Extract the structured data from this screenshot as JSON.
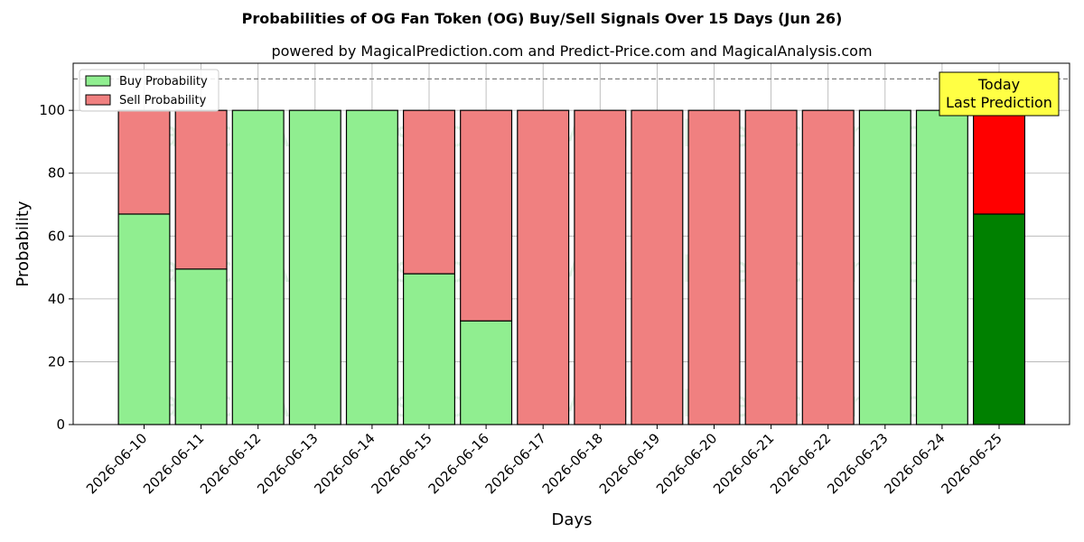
{
  "chart_data": {
    "type": "bar",
    "stacked": true,
    "title": "Probabilities of OG Fan Token (OG) Buy/Sell Signals Over 15 Days (Jun 26)",
    "subtitle": "powered by MagicalPrediction.com and Predict-Price.com and MagicalAnalysis.com",
    "xlabel": "Days",
    "ylabel": "Probability",
    "ylim": [
      0,
      115
    ],
    "yticks": [
      0,
      20,
      40,
      60,
      80,
      100
    ],
    "reference_line": 110,
    "grid": true,
    "legend_position": "top-left",
    "categories": [
      "2026-06-10",
      "2026-06-11",
      "2026-06-12",
      "2026-06-13",
      "2026-06-14",
      "2026-06-15",
      "2026-06-16",
      "2026-06-17",
      "2026-06-18",
      "2026-06-19",
      "2026-06-20",
      "2026-06-21",
      "2026-06-22",
      "2026-06-23",
      "2026-06-24",
      "2026-06-25"
    ],
    "series": [
      {
        "name": "Buy Probability",
        "color": "#90ee90",
        "highlight_color": "#008000",
        "values": [
          67,
          49.5,
          100,
          100,
          100,
          48,
          33,
          0,
          0,
          0,
          0,
          0,
          0,
          100,
          100,
          67
        ]
      },
      {
        "name": "Sell Probability",
        "color": "#f08080",
        "highlight_color": "#ff0000",
        "values": [
          33,
          50.5,
          0,
          0,
          0,
          52,
          67,
          100,
          100,
          100,
          100,
          100,
          100,
          0,
          0,
          33
        ]
      }
    ],
    "highlight_index": 15,
    "annotation": {
      "lines": [
        "Today",
        "Last Prediction"
      ],
      "color": "#ffff44"
    },
    "watermarks": [
      "MagicalAnalysis.com",
      "MagicalPrediction.com"
    ]
  }
}
